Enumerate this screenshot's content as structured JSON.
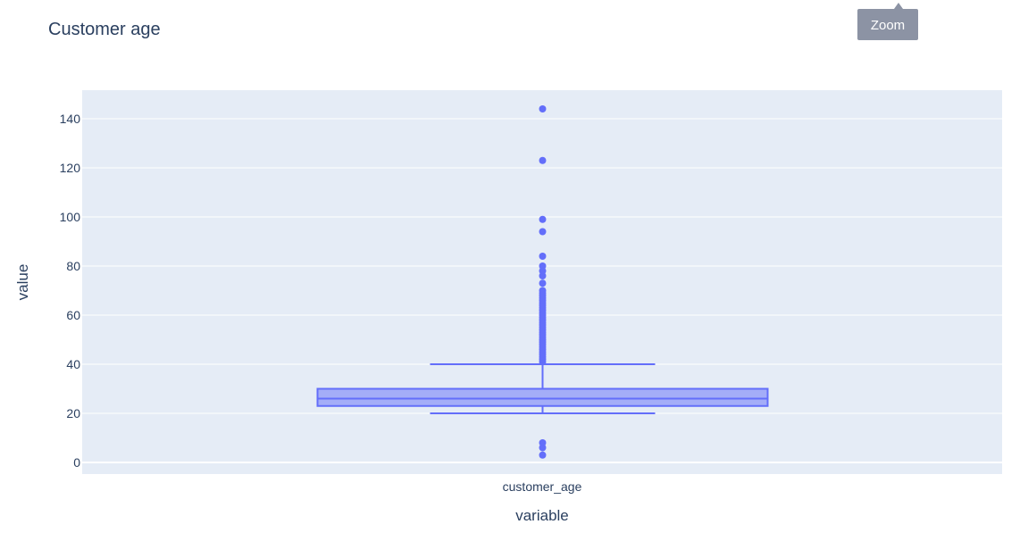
{
  "chart_data": {
    "type": "box",
    "title": "Customer age",
    "xlabel": "variable",
    "ylabel": "value",
    "categories": [
      "customer_age"
    ],
    "ylim": [
      -5,
      152
    ],
    "yticks": [
      0,
      20,
      40,
      60,
      80,
      100,
      120,
      140
    ],
    "grid": true,
    "color": "#636efa",
    "plot_background": "#e5ecf6",
    "box": {
      "lower_whisker": 20,
      "q1": 23,
      "median": 26,
      "q3": 30,
      "upper_whisker": 40
    },
    "outliers": [
      3,
      6,
      8,
      41,
      42,
      43,
      44,
      45,
      46,
      47,
      48,
      49,
      50,
      51,
      52,
      53,
      54,
      55,
      56,
      57,
      58,
      59,
      60,
      61,
      62,
      63,
      64,
      65,
      66,
      67,
      68,
      69,
      70,
      73,
      76,
      78,
      80,
      84,
      94,
      99,
      123,
      144
    ]
  },
  "tooltip": {
    "label": "Zoom"
  }
}
